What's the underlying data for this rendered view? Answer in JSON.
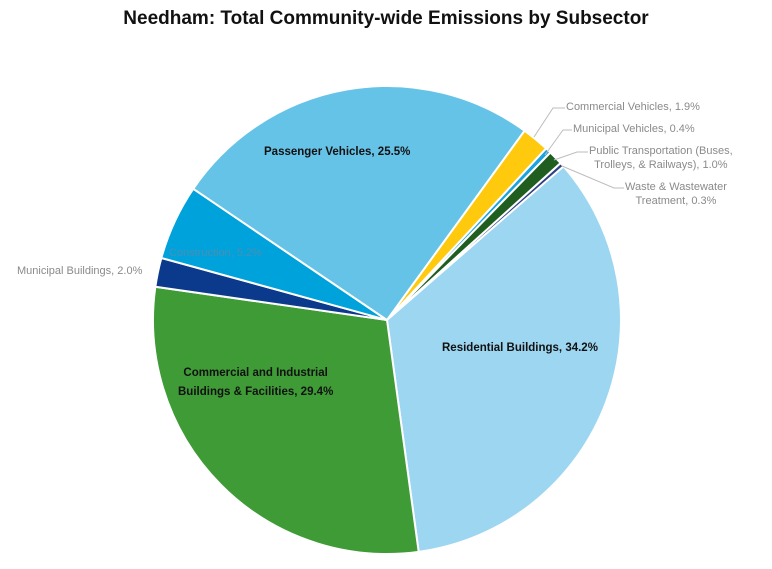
{
  "chart_data": {
    "type": "pie",
    "title": "Needham: Total Community-wide Emissions by Subsector",
    "start_angle_deg": 36,
    "slices": [
      {
        "label": "Commercial Vehicles",
        "value": 1.9,
        "display": "Commercial Vehicles, 1.9%",
        "color": "#FFC90E"
      },
      {
        "label": "Municipal Vehicles",
        "value": 0.4,
        "display": "Municipal Vehicles, 0.4%",
        "color": "#1AA3DD"
      },
      {
        "label": "Public Transportation (Buses, Trolleys, & Railways)",
        "value": 1.0,
        "display_1": "Public Transportation (Buses,",
        "display_2": "Trolleys, & Railways), 1.0%",
        "color": "#1F5E1F"
      },
      {
        "label": "Waste & Wastewater Treatment",
        "value": 0.3,
        "display_1": "Waste & Wastewater",
        "display_2": "Treatment, 0.3%",
        "color": "#2E3F86"
      },
      {
        "label": "Residential Buildings",
        "value": 34.2,
        "display": "Residential Buildings, 34.2%",
        "color": "#9DD6F1"
      },
      {
        "label": "Commercial and Industrial Buildings & Facilities",
        "value": 29.4,
        "display_1": "Commercial and Industrial",
        "display_2": "Buildings & Facilities, 29.4%",
        "color": "#3F9B36"
      },
      {
        "label": "Municipal Buildings",
        "value": 2.0,
        "display": "Municipal Buildings, 2.0%",
        "color": "#0B3A8C"
      },
      {
        "label": "Construction",
        "value": 5.2,
        "display": "Construction, 5.2%",
        "color": "#00A2DB"
      },
      {
        "label": "Passenger Vehicles",
        "value": 25.5,
        "display": "Passenger Vehicles, 25.5%",
        "color": "#66C3E8"
      }
    ]
  }
}
